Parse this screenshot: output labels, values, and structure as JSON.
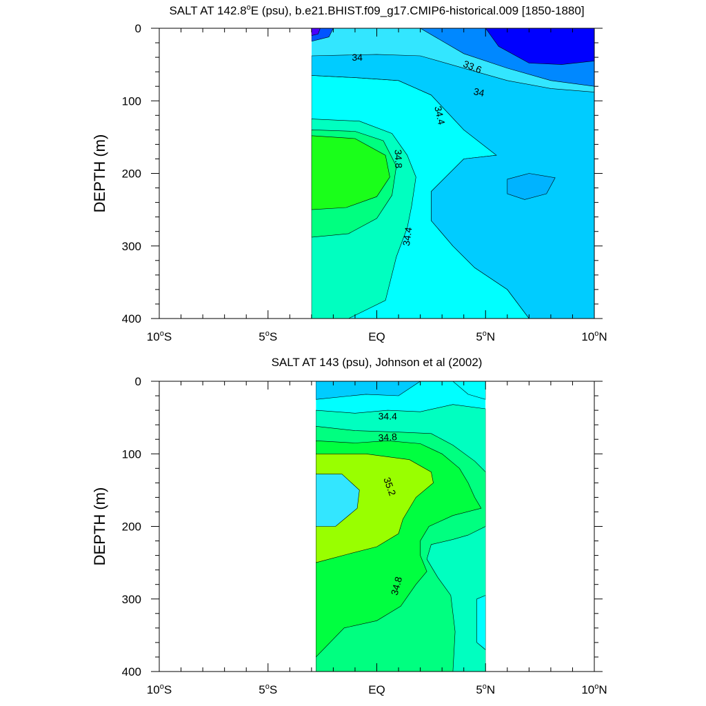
{
  "chart_data": [
    {
      "type": "heatmap",
      "subtype": "filled-contour",
      "title": "SALT AT 142.8°E (psu), b.e21.BHIST.f09_g17.CMIP6-historical.009 [1850-1880]",
      "ylabel": "DEPTH (m)",
      "xlim": [
        -10,
        10
      ],
      "ylim": [
        400,
        0
      ],
      "data_extent_x": [
        -3,
        10
      ],
      "data_extent_y": [
        0,
        400
      ],
      "x_ticks": [
        -10,
        -5,
        0,
        5,
        10
      ],
      "x_tick_labels": [
        "10°S",
        "5°S",
        "EQ",
        "5°N",
        "10°N"
      ],
      "y_ticks": [
        0,
        100,
        200,
        300,
        400
      ],
      "y_tick_labels": [
        "0",
        "100",
        "200",
        "300",
        "400"
      ],
      "contour_labels": [
        "34",
        "33.6",
        "34",
        "34.4",
        "34.8",
        "34.4"
      ],
      "regions": [
        {
          "salinity": 34.3,
          "color": "#33e6ff"
        },
        {
          "salinity": 34.5,
          "color": "#00ffff"
        },
        {
          "salinity": 34.7,
          "color": "#00ffc0"
        },
        {
          "salinity": 34.9,
          "color": "#00ff80"
        },
        {
          "salinity": 35.0,
          "color": "#1aff1a"
        },
        {
          "salinity": 34.1,
          "color": "#00ccff"
        },
        {
          "salinity": 33.9,
          "color": "#00b3ff"
        },
        {
          "salinity": 33.7,
          "color": "#0088ff"
        },
        {
          "salinity": 33.3,
          "color": "#0000ff"
        },
        {
          "salinity": 33.5,
          "color": "#0055ff"
        },
        {
          "salinity": 33.2,
          "color": "#4b00ff"
        }
      ]
    },
    {
      "type": "heatmap",
      "subtype": "filled-contour",
      "title": "SALT AT 143 (psu), Johnson et al (2002)",
      "ylabel": "DEPTH (m)",
      "xlim": [
        -10,
        10
      ],
      "ylim": [
        400,
        0
      ],
      "data_extent_x": [
        -2.8,
        5
      ],
      "data_extent_y": [
        0,
        400
      ],
      "x_ticks": [
        -10,
        -5,
        0,
        5,
        10
      ],
      "x_tick_labels": [
        "10°S",
        "5°S",
        "EQ",
        "5°N",
        "10°N"
      ],
      "y_ticks": [
        0,
        100,
        200,
        300,
        400
      ],
      "y_tick_labels": [
        "0",
        "100",
        "200",
        "300",
        "400"
      ],
      "contour_labels": [
        "34.4",
        "34.8",
        "35.2",
        "34.8"
      ],
      "regions": [
        {
          "salinity": 34.5,
          "color": "#00ffff"
        },
        {
          "salinity": 34.7,
          "color": "#00ffc0"
        },
        {
          "salinity": 34.9,
          "color": "#00ff80"
        },
        {
          "salinity": 35.1,
          "color": "#00ff40"
        },
        {
          "salinity": 35.3,
          "color": "#99ff00"
        },
        {
          "salinity": 34.3,
          "color": "#33e6ff"
        },
        {
          "salinity": 34.1,
          "color": "#00ccff"
        }
      ]
    }
  ]
}
